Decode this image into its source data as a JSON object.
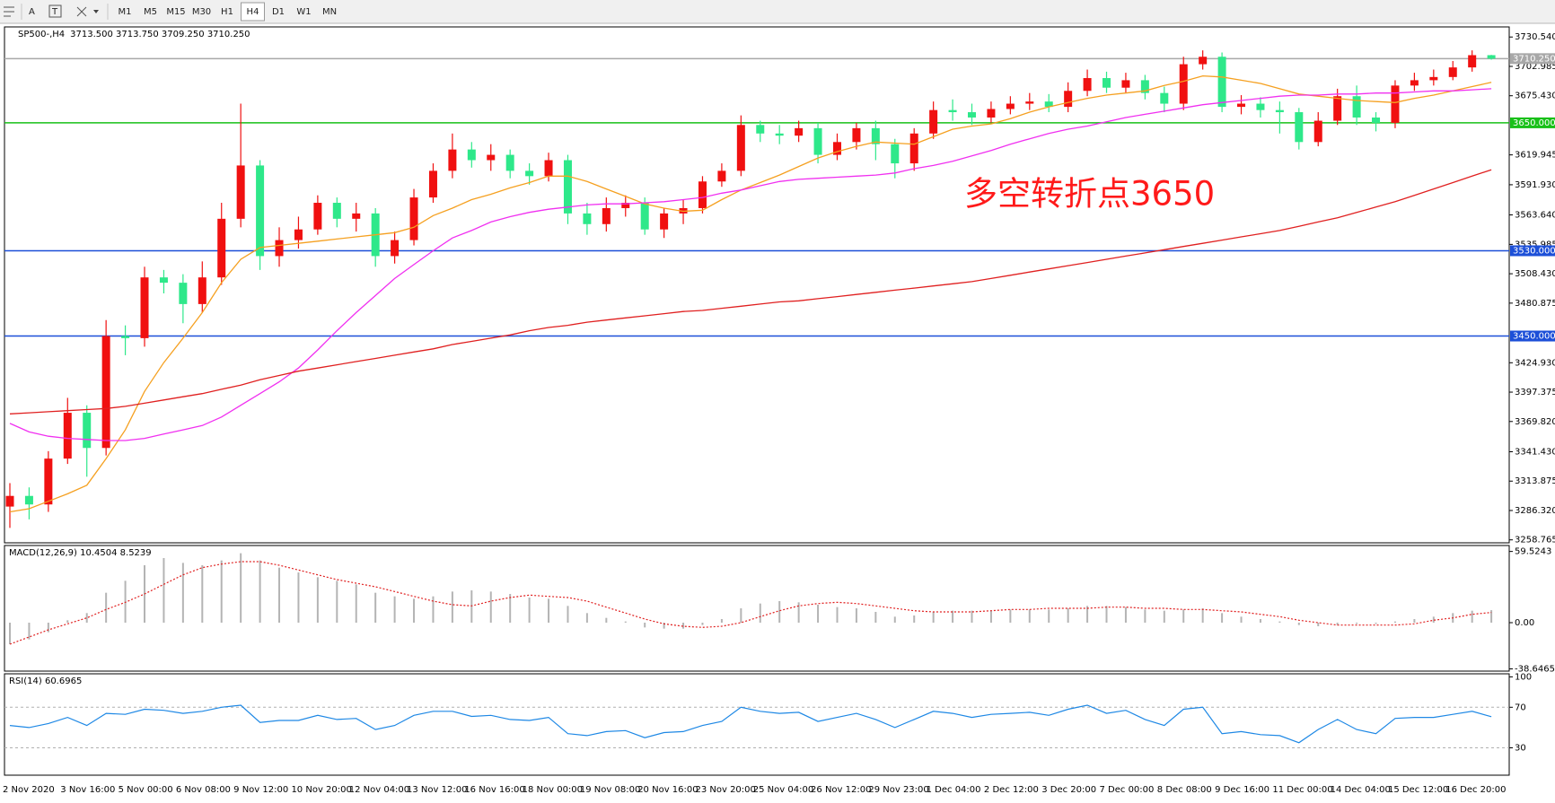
{
  "toolbar": {
    "tools": [
      "A",
      "T"
    ],
    "timeframes": [
      "M1",
      "M5",
      "M15",
      "M30",
      "H1",
      "H4",
      "D1",
      "W1",
      "MN"
    ],
    "active": "H4"
  },
  "chart_data": [
    {
      "type": "candlestick",
      "title": "SP500-,H4",
      "subtitle": "3713.500 3713.750 3709.250 3710.250",
      "annotation": "多空转折点3650",
      "categories": [
        "2 Nov 2020",
        null,
        null,
        "3 Nov 16:00",
        null,
        null,
        "5 Nov 00:00",
        null,
        null,
        "6 Nov 08:00",
        null,
        null,
        "9 Nov 12:00",
        null,
        null,
        "10 Nov 20:00",
        null,
        null,
        "12 Nov 04:00",
        null,
        null,
        "13 Nov 12:00",
        null,
        null,
        "16 Nov 16:00",
        null,
        null,
        "18 Nov 00:00",
        null,
        null,
        "19 Nov 08:00",
        null,
        null,
        "20 Nov 16:00",
        null,
        null,
        "23 Nov 20:00",
        null,
        null,
        "25 Nov 04:00",
        null,
        null,
        "26 Nov 12:00",
        null,
        null,
        "29 Nov 23:00",
        null,
        null,
        "1 Dec 04:00",
        null,
        null,
        "2 Dec 12:00",
        null,
        null,
        "3 Dec 20:00",
        null,
        null,
        "7 Dec 00:00",
        null,
        null,
        "8 Dec 08:00",
        null,
        null,
        "9 Dec 16:00",
        null,
        null,
        "11 Dec 00:00",
        null,
        null,
        "14 Dec 04:00",
        null,
        null,
        "15 Dec 12:00",
        null,
        null,
        "16 Dec 20:00",
        null,
        null
      ],
      "open": [
        3290,
        3300,
        3292,
        3335,
        3378,
        3345,
        3450,
        3448,
        3505,
        3500,
        3480,
        3505,
        3560,
        3610,
        3525,
        3540,
        3550,
        3575,
        3560,
        3565,
        3525,
        3540,
        3580,
        3605,
        3625,
        3615,
        3620,
        3605,
        3600,
        3615,
        3565,
        3555,
        3570,
        3575,
        3550,
        3565,
        3570,
        3595,
        3605,
        3648,
        3640,
        3638,
        3645,
        3620,
        3632,
        3645,
        3630,
        3612,
        3640,
        3662,
        3660,
        3655,
        3663,
        3668,
        3670,
        3665,
        3680,
        3692,
        3683,
        3690,
        3678,
        3668,
        3705,
        3712,
        3665,
        3668,
        3662,
        3660,
        3632,
        3652,
        3675,
        3655,
        3650,
        3685,
        3690,
        3693,
        3702,
        3713.5
      ],
      "high": [
        3312,
        3308,
        3342,
        3392,
        3385,
        3465,
        3460,
        3515,
        3512,
        3508,
        3520,
        3575,
        3668,
        3615,
        3552,
        3562,
        3582,
        3580,
        3575,
        3570,
        3548,
        3588,
        3612,
        3640,
        3632,
        3630,
        3625,
        3612,
        3622,
        3620,
        3575,
        3580,
        3582,
        3580,
        3570,
        3578,
        3600,
        3612,
        3657,
        3652,
        3648,
        3652,
        3650,
        3640,
        3650,
        3652,
        3635,
        3645,
        3670,
        3672,
        3668,
        3670,
        3675,
        3678,
        3677,
        3688,
        3700,
        3698,
        3697,
        3695,
        3684,
        3712,
        3718,
        3716,
        3676,
        3674,
        3670,
        3664,
        3660,
        3682,
        3685,
        3660,
        3690,
        3697,
        3700,
        3708,
        3718,
        3713.75
      ],
      "low": [
        3270,
        3278,
        3285,
        3330,
        3318,
        3338,
        3432,
        3440,
        3490,
        3462,
        3472,
        3498,
        3552,
        3512,
        3515,
        3532,
        3545,
        3552,
        3548,
        3515,
        3518,
        3535,
        3575,
        3598,
        3608,
        3605,
        3598,
        3592,
        3595,
        3555,
        3545,
        3548,
        3562,
        3545,
        3542,
        3555,
        3565,
        3590,
        3600,
        3632,
        3630,
        3632,
        3612,
        3615,
        3625,
        3615,
        3598,
        3605,
        3635,
        3652,
        3648,
        3650,
        3658,
        3662,
        3660,
        3660,
        3675,
        3678,
        3678,
        3672,
        3660,
        3662,
        3700,
        3660,
        3658,
        3655,
        3640,
        3625,
        3628,
        3648,
        3648,
        3642,
        3645,
        3680,
        3685,
        3690,
        3698,
        3709.25
      ],
      "close": [
        3300,
        3292,
        3335,
        3378,
        3345,
        3450,
        3448,
        3505,
        3500,
        3480,
        3505,
        3560,
        3610,
        3525,
        3540,
        3550,
        3575,
        3560,
        3565,
        3525,
        3540,
        3580,
        3605,
        3625,
        3615,
        3620,
        3605,
        3600,
        3615,
        3565,
        3555,
        3570,
        3575,
        3550,
        3565,
        3570,
        3595,
        3605,
        3648,
        3640,
        3638,
        3645,
        3620,
        3632,
        3645,
        3630,
        3612,
        3640,
        3662,
        3660,
        3655,
        3663,
        3668,
        3670,
        3665,
        3680,
        3692,
        3683,
        3690,
        3678,
        3668,
        3705,
        3712,
        3665,
        3668,
        3662,
        3660,
        3632,
        3652,
        3675,
        3655,
        3650,
        3685,
        3690,
        3693,
        3702,
        3713.5,
        3710.25
      ],
      "up_color": "#f01010",
      "down_color": "#2ee88a",
      "series": [
        {
          "color": "#f5a020",
          "values": [
            3285,
            3288,
            3295,
            3302,
            3310,
            3335,
            3362,
            3398,
            3425,
            3448,
            3472,
            3500,
            3522,
            3533,
            3535,
            3537,
            3539,
            3541,
            3543,
            3545,
            3547,
            3552,
            3563,
            3570,
            3578,
            3583,
            3589,
            3594,
            3600,
            3600,
            3595,
            3588,
            3581,
            3574,
            3570,
            3567,
            3568,
            3578,
            3587,
            3594,
            3601,
            3609,
            3617,
            3623,
            3628,
            3632,
            3631,
            3630,
            3637,
            3644,
            3647,
            3649,
            3654,
            3660,
            3665,
            3669,
            3673,
            3676,
            3678,
            3680,
            3685,
            3689,
            3694,
            3693,
            3690,
            3687,
            3682,
            3677,
            3675,
            3673,
            3671,
            3670,
            3669,
            3673,
            3676,
            3680,
            3684,
            3688
          ]
        },
        {
          "color": "#f030f0",
          "values": [
            3368,
            3360,
            3356,
            3354,
            3353,
            3352,
            3352,
            3354,
            3358,
            3362,
            3366,
            3374,
            3385,
            3396,
            3407,
            3420,
            3437,
            3455,
            3472,
            3488,
            3504,
            3517,
            3530,
            3542,
            3549,
            3557,
            3562,
            3566,
            3569,
            3571,
            3573,
            3574,
            3574,
            3575,
            3576,
            3578,
            3580,
            3584,
            3587,
            3591,
            3595,
            3597,
            3598,
            3599,
            3600,
            3601,
            3603,
            3607,
            3610,
            3614,
            3619,
            3624,
            3630,
            3635,
            3640,
            3644,
            3647,
            3651,
            3655,
            3658,
            3661,
            3664,
            3667,
            3669,
            3671,
            3673,
            3675,
            3676,
            3676,
            3677,
            3677,
            3678,
            3678,
            3679,
            3680,
            3680,
            3681,
            3682
          ]
        },
        {
          "color": "#e02020",
          "values": [
            3377,
            3378,
            3379,
            3380,
            3381,
            3382,
            3384,
            3387,
            3390,
            3393,
            3396,
            3400,
            3404,
            3409,
            3413,
            3417,
            3420,
            3423,
            3426,
            3429,
            3432,
            3435,
            3438,
            3442,
            3445,
            3448,
            3451,
            3455,
            3458,
            3460,
            3463,
            3465,
            3467,
            3469,
            3471,
            3473,
            3474,
            3476,
            3478,
            3480,
            3482,
            3483,
            3485,
            3487,
            3489,
            3491,
            3493,
            3495,
            3497,
            3499,
            3501,
            3504,
            3507,
            3510,
            3513,
            3516,
            3519,
            3522,
            3525,
            3528,
            3531,
            3534,
            3537,
            3540,
            3543,
            3546,
            3549,
            3553,
            3557,
            3561,
            3566,
            3571,
            3576,
            3582,
            3588,
            3594,
            3600,
            3606
          ]
        }
      ],
      "hlines": [
        {
          "value": 3710.25,
          "label": "3710.250",
          "color": "#a8a8a8"
        },
        {
          "value": 3650,
          "label": "3650.000",
          "color": "#18c018"
        },
        {
          "value": 3530,
          "label": "3530.000",
          "color": "#1c4fd8"
        },
        {
          "value": 3450,
          "label": "3450.000",
          "color": "#1c4fd8"
        }
      ],
      "ylim": [
        3256,
        3740
      ],
      "yticks": [
        {
          "value": 3730.54,
          "label": "3730.540"
        },
        {
          "value": 3702.985,
          "label": "3702.985"
        },
        {
          "value": 3675.43,
          "label": "3675.430"
        },
        {
          "value": 3619.945,
          "label": "3619.945"
        },
        {
          "value": 3591.93,
          "label": "3591.930"
        },
        {
          "value": 3563.64,
          "label": "3563.640"
        },
        {
          "value": 3535.985,
          "label": "3535.985"
        },
        {
          "value": 3508.43,
          "label": "3508.430"
        },
        {
          "value": 3480.875,
          "label": "3480.875"
        },
        {
          "value": 3424.93,
          "label": "3424.930"
        },
        {
          "value": 3397.375,
          "label": "3397.375"
        },
        {
          "value": 3369.82,
          "label": "3369.820"
        },
        {
          "value": 3341.43,
          "label": "3341.430"
        },
        {
          "value": 3313.875,
          "label": "3313.875"
        },
        {
          "value": 3286.32,
          "label": "3286.320"
        },
        {
          "value": 3258.765,
          "label": "3258.765"
        }
      ]
    },
    {
      "type": "bar",
      "title": "MACD(12,26,9) 10.4504 8.5239",
      "color": "#b4b4b4",
      "values": [
        -18,
        -14,
        -8,
        2,
        8,
        25,
        35,
        48,
        54,
        50,
        48,
        52,
        58,
        52,
        46,
        42,
        38,
        35,
        32,
        25,
        22,
        20,
        22,
        26,
        27,
        26,
        24,
        21,
        20,
        14,
        8,
        4,
        1,
        -4,
        -5,
        -5,
        -2,
        3,
        12,
        16,
        18,
        17,
        15,
        13,
        12,
        9,
        5,
        6,
        9,
        10,
        10,
        10,
        11,
        11,
        11,
        12,
        14,
        14,
        13,
        11,
        10,
        11,
        12,
        8,
        5,
        3,
        1,
        -2,
        -3,
        -2,
        -1,
        -1,
        1,
        3,
        5,
        8,
        10,
        10.4504
      ],
      "series": [
        {
          "color": "#e02020",
          "values": [
            -18,
            -12,
            -6,
            -1,
            4,
            11,
            17,
            24,
            32,
            40,
            46,
            49,
            51,
            51,
            48,
            44,
            40,
            36,
            33,
            30,
            26,
            22,
            18,
            15,
            14,
            18,
            21,
            23,
            22,
            21,
            18,
            13,
            8,
            3,
            -1,
            -3,
            -4,
            -3,
            0,
            5,
            10,
            14,
            16,
            17,
            16,
            14,
            12,
            10,
            9,
            9,
            9,
            10,
            11,
            11,
            12,
            12,
            12,
            13,
            13,
            12,
            12,
            11,
            11,
            10,
            9,
            7,
            5,
            2,
            0,
            -2,
            -2,
            -2,
            -2,
            -1,
            2,
            4,
            7,
            8.5239
          ]
        }
      ],
      "ylim": [
        -40.5,
        64.5
      ],
      "yticks": [
        59.5243,
        {
          "value": 0,
          "label": "0.00"
        },
        -38.6465
      ]
    },
    {
      "type": "line",
      "title": "RSI(14) 60.6965",
      "color": "#1e88e5",
      "values": [
        52,
        50,
        54,
        60,
        52,
        64,
        63,
        68,
        67,
        64,
        66,
        70,
        72,
        55,
        57,
        57,
        62,
        58,
        59,
        48,
        52,
        62,
        66,
        66,
        61,
        62,
        58,
        57,
        60,
        44,
        42,
        46,
        47,
        40,
        45,
        46,
        52,
        56,
        70,
        66,
        64,
        65,
        56,
        60,
        64,
        58,
        50,
        58,
        66,
        64,
        60,
        63,
        64,
        65,
        62,
        68,
        72,
        64,
        67,
        58,
        52,
        68,
        70,
        44,
        46,
        43,
        42,
        35,
        48,
        58,
        48,
        44,
        59,
        60,
        60,
        63,
        66,
        60.6965
      ],
      "levels": [
        70,
        30
      ],
      "ylim": [
        3,
        103
      ],
      "yticks": [
        100,
        70,
        30
      ]
    }
  ]
}
